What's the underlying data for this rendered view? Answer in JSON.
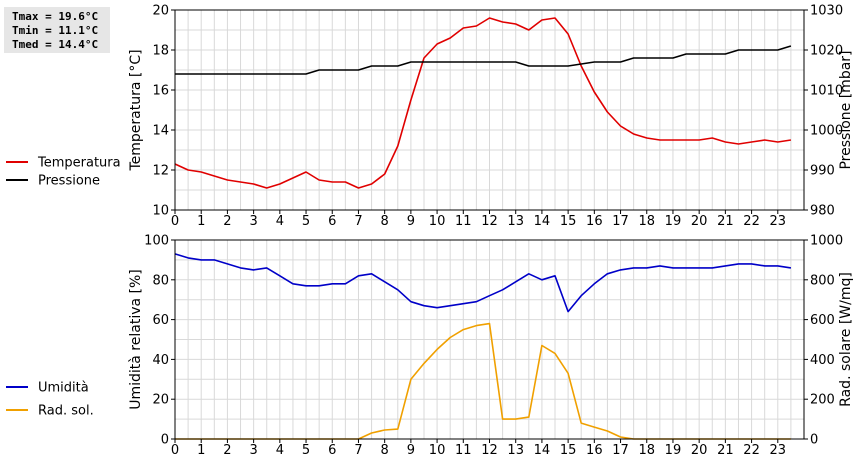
{
  "stats": {
    "tmax": "Tmax = 19.6°C",
    "tmin": "Tmin = 11.1°C",
    "tmed": "Tmed = 14.4°C"
  },
  "colors": {
    "temperature": "#e00000",
    "pressure": "#000000",
    "humidity": "#0000c8",
    "solar": "#f0a000",
    "grid": "#d9d9d9"
  },
  "chart_data": [
    {
      "type": "line",
      "x_tick_labels": [
        "0",
        "1",
        "2",
        "3",
        "4",
        "5",
        "6",
        "7",
        "8",
        "9",
        "10",
        "11",
        "12",
        "13",
        "14",
        "15",
        "16",
        "17",
        "18",
        "19",
        "20",
        "21",
        "22",
        "23"
      ],
      "xlim": [
        0,
        24
      ],
      "ylim": [
        10,
        20
      ],
      "y_ticks": [
        "10",
        "12",
        "14",
        "16",
        "18",
        "20"
      ],
      "ylabel": "Temperatura [°C]",
      "y2lim": [
        980,
        1030
      ],
      "y2_ticks": [
        "980",
        "990",
        "1000",
        "1010",
        "1020",
        "1030"
      ],
      "y2label": "Pressione [mbar]",
      "grid": true,
      "legend": [
        "Temperatura",
        "Pressione"
      ],
      "series": [
        {
          "name": "Temperatura",
          "axis": "left",
          "x": [
            0,
            0.5,
            1,
            1.5,
            2,
            2.5,
            3,
            3.5,
            4,
            4.5,
            5,
            5.5,
            6,
            6.5,
            7,
            7.5,
            8,
            8.5,
            9,
            9.5,
            10,
            10.5,
            11,
            11.5,
            12,
            12.5,
            13,
            13.5,
            14,
            14.5,
            15,
            15.5,
            16,
            16.5,
            17,
            17.5,
            18,
            18.5,
            19,
            19.5,
            20,
            20.5,
            21,
            21.5,
            22,
            22.5,
            23,
            23.5
          ],
          "values": [
            12.3,
            12.0,
            11.9,
            11.7,
            11.5,
            11.4,
            11.3,
            11.1,
            11.3,
            11.6,
            11.9,
            11.5,
            11.4,
            11.4,
            11.1,
            11.3,
            11.8,
            13.2,
            15.5,
            17.6,
            18.3,
            18.6,
            19.1,
            19.2,
            19.6,
            19.4,
            19.3,
            19.0,
            19.5,
            19.6,
            18.8,
            17.2,
            15.9,
            14.9,
            14.2,
            13.8,
            13.6,
            13.5,
            13.5,
            13.5,
            13.5,
            13.6,
            13.4,
            13.3,
            13.4,
            13.5,
            13.4,
            13.5
          ]
        },
        {
          "name": "Pressione",
          "axis": "right",
          "x": [
            0,
            1,
            2,
            3,
            4,
            5,
            5.5,
            6,
            7,
            7.5,
            8,
            8.5,
            9,
            10,
            11,
            12,
            13,
            13.5,
            14,
            15,
            16,
            17,
            17.5,
            18,
            19,
            19.5,
            20,
            21,
            21.5,
            22,
            23,
            23.5
          ],
          "values": [
            1014,
            1014,
            1014,
            1014,
            1014,
            1014,
            1015,
            1015,
            1015,
            1016,
            1016,
            1016,
            1017,
            1017,
            1017,
            1017,
            1017,
            1016,
            1016,
            1016,
            1017,
            1017,
            1018,
            1018,
            1018,
            1019,
            1019,
            1019,
            1020,
            1020,
            1020,
            1021
          ]
        }
      ]
    },
    {
      "type": "line",
      "x_tick_labels": [
        "0",
        "1",
        "2",
        "3",
        "4",
        "5",
        "6",
        "7",
        "8",
        "9",
        "10",
        "11",
        "12",
        "13",
        "14",
        "15",
        "16",
        "17",
        "18",
        "19",
        "20",
        "21",
        "22",
        "23"
      ],
      "xlim": [
        0,
        24
      ],
      "ylim": [
        0,
        100
      ],
      "y_ticks": [
        "0",
        "20",
        "40",
        "60",
        "80",
        "100"
      ],
      "ylabel": "Umidità relativa [%]",
      "y2lim": [
        0,
        1000
      ],
      "y2_ticks": [
        "0",
        "200",
        "400",
        "600",
        "800",
        "1000"
      ],
      "y2label": "Rad. solare [W/mq]",
      "grid": true,
      "legend": [
        "Umidità",
        "Rad. sol."
      ],
      "series": [
        {
          "name": "Umidità",
          "axis": "left",
          "x": [
            0,
            0.5,
            1,
            1.5,
            2,
            2.5,
            3,
            3.5,
            4,
            4.5,
            5,
            5.5,
            6,
            6.5,
            7,
            7.5,
            8,
            8.5,
            9,
            9.5,
            10,
            10.5,
            11,
            11.5,
            12,
            12.5,
            13,
            13.5,
            14,
            14.5,
            15,
            15.5,
            16,
            16.5,
            17,
            17.5,
            18,
            18.5,
            19,
            19.5,
            20,
            20.5,
            21,
            21.5,
            22,
            22.5,
            23,
            23.5
          ],
          "values": [
            93,
            91,
            90,
            90,
            88,
            86,
            85,
            86,
            82,
            78,
            77,
            77,
            78,
            78,
            82,
            83,
            79,
            75,
            69,
            67,
            66,
            67,
            68,
            69,
            72,
            75,
            79,
            83,
            80,
            82,
            64,
            72,
            78,
            83,
            85,
            86,
            86,
            87,
            86,
            86,
            86,
            86,
            87,
            88,
            88,
            87,
            87,
            86
          ]
        },
        {
          "name": "Rad. sol.",
          "axis": "right",
          "x": [
            0,
            1,
            2,
            3,
            4,
            5,
            6,
            7,
            7.5,
            8,
            8.5,
            9,
            9.5,
            10,
            10.5,
            11,
            11.5,
            12,
            12.5,
            13,
            13.5,
            14,
            14.5,
            15,
            15.5,
            16,
            16.5,
            17,
            17.5,
            18,
            19,
            20,
            21,
            22,
            23,
            23.5
          ],
          "values": [
            0,
            0,
            0,
            0,
            0,
            0,
            0,
            0,
            30,
            45,
            50,
            300,
            380,
            450,
            510,
            550,
            570,
            580,
            100,
            100,
            110,
            470,
            430,
            330,
            80,
            60,
            40,
            10,
            0,
            0,
            0,
            0,
            0,
            0,
            0,
            0
          ]
        }
      ]
    }
  ]
}
